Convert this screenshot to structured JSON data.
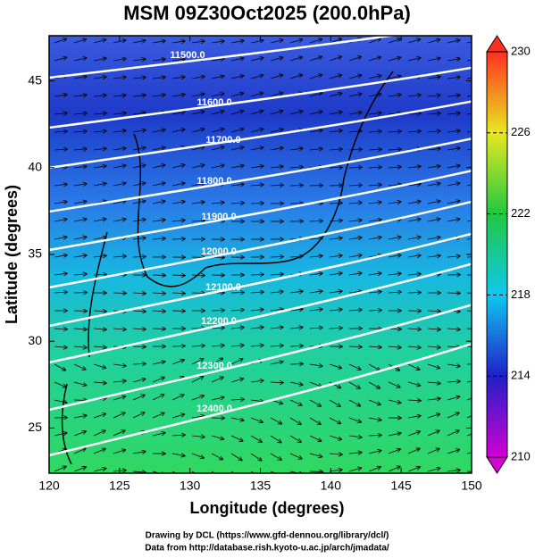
{
  "chart_data": {
    "type": "map",
    "title": "MSM 09Z30Oct2025 (200.0hPa)",
    "x_label": "Longitude (degrees)",
    "y_label": "Latitude  (degrees)",
    "xlim": [
      120,
      150
    ],
    "xticks": [
      120,
      125,
      130,
      135,
      140,
      145,
      150
    ],
    "ylim": [
      22.4,
      47.6
    ],
    "yticks": [
      25,
      30,
      35,
      40,
      45
    ],
    "colorbar": {
      "lim": [
        210,
        230
      ],
      "ticks": [
        210,
        214,
        218,
        222,
        226,
        230
      ],
      "colors": [
        "#d400d4",
        "#2020c8",
        "#10c8f0",
        "#20c840",
        "#e8e820",
        "#ff3020"
      ]
    },
    "contours": [
      {
        "value": 11500,
        "label": "11500.0"
      },
      {
        "value": 11600,
        "label": "11600.0"
      },
      {
        "value": 11700,
        "label": "11700.0"
      },
      {
        "value": 11800,
        "label": "11800.0"
      },
      {
        "value": 11900,
        "label": "11900.0"
      },
      {
        "value": 12000,
        "label": "12000.0"
      },
      {
        "value": 12100,
        "label": "12100.0"
      },
      {
        "value": 12200,
        "label": "12200.0"
      },
      {
        "value": 12300,
        "label": "12300.0"
      },
      {
        "value": 12400,
        "label": "12400.0"
      }
    ],
    "footer": [
      "Drawing by DCL (https://www.gfd-dennou.org/library/dcl/)",
      "Data from http://database.rish.kyoto-u.ac.jp/arch/jmadata/"
    ]
  }
}
